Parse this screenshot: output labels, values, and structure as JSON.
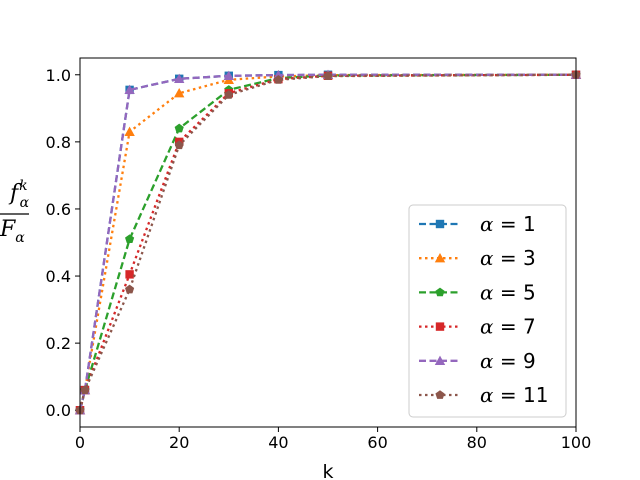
{
  "chart_data": {
    "type": "line",
    "xlabel": "k",
    "ylabel": {
      "numerator_base": "f",
      "numerator_sup": "k",
      "numerator_sub": "α",
      "denominator_base": "F",
      "denominator_sub": "α"
    },
    "xlim": [
      0,
      100
    ],
    "ylim": [
      -0.05,
      1.05
    ],
    "xticks": [
      0,
      20,
      40,
      60,
      80,
      100
    ],
    "yticks": [
      0.0,
      0.2,
      0.4,
      0.6,
      0.8,
      1.0
    ],
    "xtick_labels": [
      "0",
      "20",
      "40",
      "60",
      "80",
      "100"
    ],
    "ytick_labels": [
      "0.0",
      "0.2",
      "0.4",
      "0.6",
      "0.8",
      "1.0"
    ],
    "grid": false,
    "legend_position": "lower-right",
    "series": [
      {
        "name": "α = 1",
        "greek": "α",
        "label_rest": " = 1",
        "color": "#1f77b4",
        "dash": "dashed",
        "marker": "square",
        "x": [
          0,
          1,
          10,
          20,
          30,
          40,
          50,
          100
        ],
        "y": [
          0.0,
          0.06,
          0.955,
          0.988,
          0.997,
          0.999,
          1.0,
          1.0
        ]
      },
      {
        "name": "α = 3",
        "greek": "α",
        "label_rest": " = 3",
        "color": "#ff7f0e",
        "dash": "dotted",
        "marker": "triangle",
        "x": [
          0,
          1,
          10,
          20,
          30,
          40,
          50,
          100
        ],
        "y": [
          0.0,
          0.06,
          0.83,
          0.945,
          0.985,
          0.995,
          0.999,
          1.0
        ]
      },
      {
        "name": "α = 5",
        "greek": "α",
        "label_rest": " = 5",
        "color": "#2ca02c",
        "dash": "dashed",
        "marker": "pentagon",
        "x": [
          0,
          1,
          10,
          20,
          30,
          40,
          50,
          100
        ],
        "y": [
          0.0,
          0.06,
          0.51,
          0.84,
          0.955,
          0.99,
          0.998,
          1.0
        ]
      },
      {
        "name": "α = 7",
        "greek": "α",
        "label_rest": " = 7",
        "color": "#d62728",
        "dash": "dotted",
        "marker": "square",
        "x": [
          0,
          1,
          10,
          20,
          30,
          40,
          50,
          100
        ],
        "y": [
          0.0,
          0.06,
          0.405,
          0.8,
          0.945,
          0.987,
          0.997,
          1.0
        ]
      },
      {
        "name": "α = 9",
        "greek": "α",
        "label_rest": " = 9",
        "color": "#9467bd",
        "dash": "dashed",
        "marker": "triangle",
        "x": [
          0,
          1,
          10,
          20,
          30,
          40,
          50,
          100
        ],
        "y": [
          0.0,
          0.06,
          0.955,
          0.988,
          0.997,
          0.999,
          1.0,
          1.0
        ]
      },
      {
        "name": "α = 11",
        "greek": "α",
        "label_rest": " = 11",
        "color": "#8c564b",
        "dash": "dotted",
        "marker": "pentagon",
        "x": [
          0,
          1,
          10,
          20,
          30,
          40,
          50,
          100
        ],
        "y": [
          0.0,
          0.06,
          0.36,
          0.79,
          0.94,
          0.985,
          0.996,
          1.0
        ]
      }
    ]
  }
}
